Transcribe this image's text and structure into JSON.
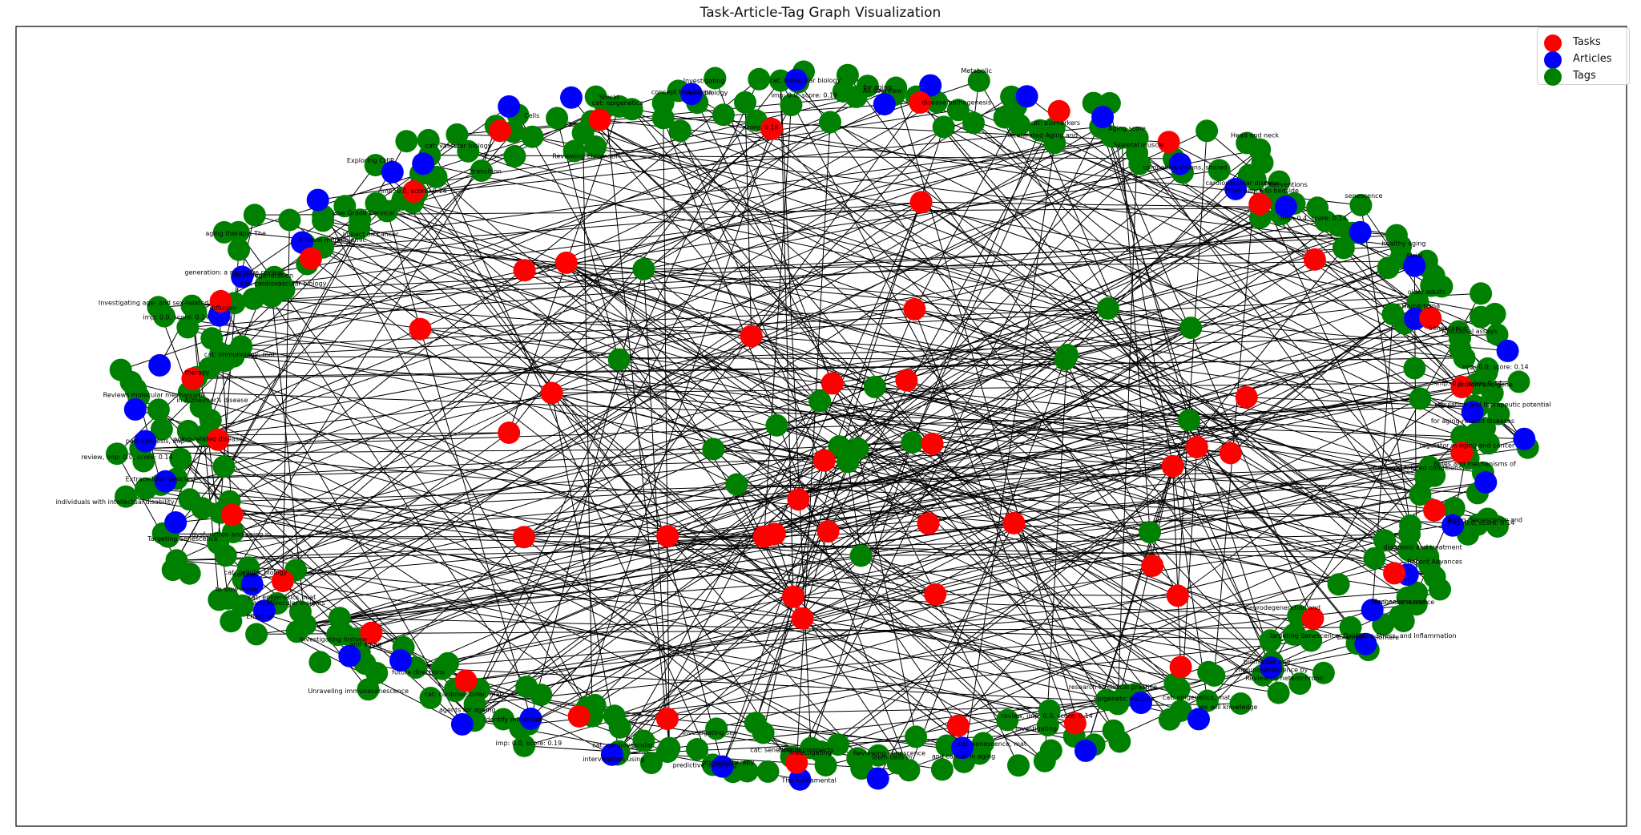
{
  "title": "Task-Article-Tag Graph Visualization",
  "legend": [
    {
      "label": "Tasks",
      "color": "#ff0000"
    },
    {
      "label": "Articles",
      "color": "#0000ff"
    },
    {
      "label": "Tags",
      "color": "#008000"
    }
  ],
  "colors": {
    "task": "#ff0000",
    "article": "#0000ff",
    "tag": "#008000",
    "edge": "#000000"
  },
  "labels": [
    "Task-Article-Tag Graph Visualization",
    "Roles and mechanisms of",
    "Aging, Senescence and",
    "Recent Advances",
    "Immunosenescence",
    "Examines telomere",
    "Reviewing heterochronic",
    "cat: epigenetics, mat",
    "Epigenetic Insights",
    "Investigating",
    "cat: senescence, mat",
    "Reviewing senescence",
    "cat: senescence",
    "Investigating sex",
    "cat: cardiovascular",
    "Identify molecular",
    "cat: cardiovascular, mat",
    "Unraveling immunosenescence",
    "Investigating histone",
    "cat: epigenetics, mat",
    "cat: cellular biology",
    "Targeting Senescence",
    "Extracellular vesicles",
    "pathogenesis, imp",
    "Reviews molecular mechanisms",
    "cat: immunology, mat",
    "Investigating age- and sex-related",
    "cat: cardiovascular biology",
    "A novel metabolomic",
    "Low Grade Cervical",
    "Exploring CHIP",
    "cat: vascular biology",
    "Reviewing chromatin",
    "cat: epigenetics",
    "Investigating",
    "cat: molecular biology",
    "An overview",
    "Metabolic",
    "cat: biomarkers",
    "Skeletal muscle",
    "Head and neck",
    "From bench to bedside",
    "senescence",
    "Atrial",
    "Hamartoma",
    "Senescence",
    "protein and gene",
    "for aging-related diseases",
    "immunosenescence by",
    "immunotherapy",
    "to slow down",
    "generation: a narrative review.",
    "concept to address",
    "cardiovascular disease.",
    "regulator in aging and cancer",
    "Investigating",
    "aging-related diseases",
    "score: 0.18",
    "imp: 0.0, score: 0.14",
    "for aging-related conditions",
    "imp: 0.0, score: 0.14",
    "diagnosis and treatment",
    "Mechanisms and",
    "neurodegeneration and",
    "biomarker and",
    "we will knowledge",
    "research to clinical practice",
    "review, imp: 0.0, score: 0.14",
    "and cancer in aging",
    "stem cells in",
    "clinical prospects",
    "predictive modeling",
    "interventions using",
    "imp: 0.0, score: 0.19",
    "agents for ageing",
    "future directions",
    "and aging",
    "and Molecular Insights",
    "cellular",
    "dysfunction and aging in",
    "individuals with intellectual disability",
    "review, imp: 0.0, score: 0.14",
    "in Alzheimer's disease",
    "therapy",
    "imp: 0.0, score: 0.14",
    "neurodegeneration",
    "aging therapy: The",
    "impact on cancer",
    "imp: 0.0, score: 0.14",
    "transition",
    "Cells",
    "Shield",
    "aging biology",
    "imp: 0.0, score: 0.19",
    "for aging",
    "disease pathogenesis",
    "Accelerated Aging and",
    "Aging score",
    "competing visions, shared",
    "interventions",
    "imp: 0.4, score: 0.14",
    "healthy aging",
    "older adults",
    "functional assays",
    "imp: 0.0, score: 0.14",
    "regulation and therapeutic potential",
    "Targeting Senescence, Oxidative Stress, and Inflammation",
    "The fundamental",
    "Effect of",
    "diffusion"
  ],
  "node_counts": {
    "tasks": 58,
    "articles": 48,
    "tags": 330
  }
}
